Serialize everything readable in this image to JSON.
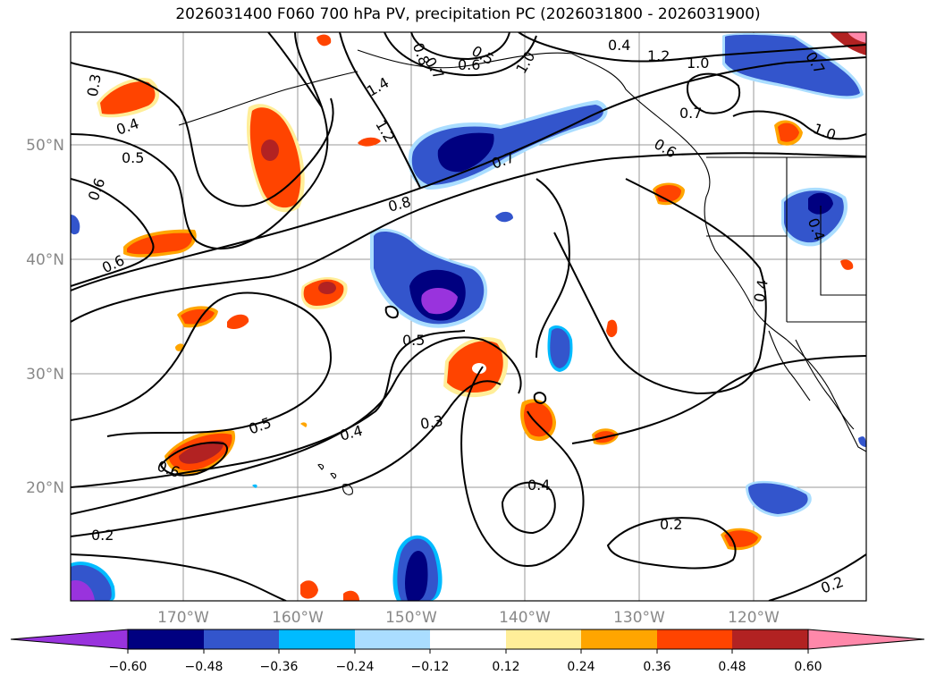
{
  "title": "2026031400 F060 700 hPa PV, precipitation PC (2026031800 - 2026031900)",
  "lat_labels": [
    "50°N",
    "40°N",
    "30°N",
    "20°N"
  ],
  "lon_labels": [
    "170°W",
    "160°W",
    "150°W",
    "140°W",
    "130°W",
    "120°W"
  ],
  "contour_labels": [
    "0.3",
    "0.4",
    "0.5",
    "0.6",
    "0.6",
    "0.8",
    "0.5",
    "0.6",
    "0.5",
    "0.4",
    "0.3",
    "0.4",
    "0.2",
    "0.2",
    "0.2",
    "1.4",
    "1.2",
    "0.8",
    "0.7",
    "0.5",
    "0.6",
    "1.0",
    "1.2",
    "1.0",
    "0.7",
    "0.6",
    "1.0",
    "0.7",
    "0.4",
    "0.7",
    "0.4",
    "0.4"
  ],
  "colorbar": {
    "ticks": [
      "−0.60",
      "−0.48",
      "−0.36",
      "−0.24",
      "−0.12",
      "0.12",
      "0.24",
      "0.36",
      "0.48",
      "0.60"
    ],
    "colors": [
      "#9933dd",
      "#000080",
      "#3355cc",
      "#00bbff",
      "#aaddff",
      "#ffffff",
      "#ffee99",
      "#ffa500",
      "#ff4400",
      "#b22222",
      "#ff88aa"
    ]
  },
  "colors": {
    "neg_high": "#9933dd",
    "neg_strong": "#000080",
    "neg_mid": "#3355cc",
    "neg_low": "#00bbff",
    "neg_light": "#aaddff",
    "pos_light": "#ffee99",
    "pos_low": "#ffa500",
    "pos_mid": "#ff4400",
    "pos_strong": "#b22222",
    "pos_high": "#ff88aa"
  }
}
